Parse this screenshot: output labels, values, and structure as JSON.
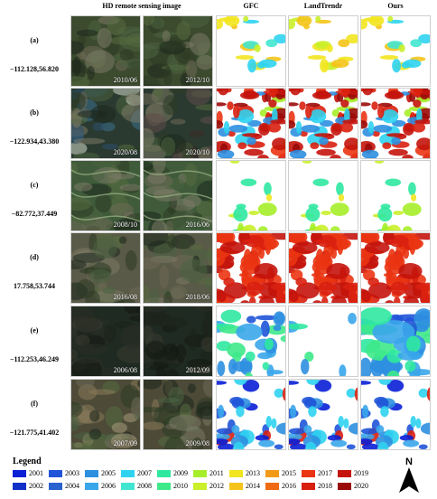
{
  "headers": {
    "hd": "HD remote sensing image",
    "gfc": "GFC",
    "landtrendr": "LandTrendr",
    "ours": "Ours"
  },
  "rows": [
    {
      "id": "(a)",
      "coord": "−112.128,56.820",
      "date1": "2010/06",
      "date2": "2012/10"
    },
    {
      "id": "(b)",
      "coord": "−122.934,43.380",
      "date1": "2020/08",
      "date2": "2020/10"
    },
    {
      "id": "(c)",
      "coord": "−82.772,37.449",
      "date1": "2008/10",
      "date2": "2016/06"
    },
    {
      "id": "(d)",
      "coord": "17.758,53.744",
      "date1": "2016/08",
      "date2": "2018/06"
    },
    {
      "id": "(e)",
      "coord": "−112.253,46.249",
      "date1": "2006/08",
      "date2": "2012/09"
    },
    {
      "id": "(f)",
      "coord": "−121.775,41.402",
      "date1": "2007/09",
      "date2": "2009/08"
    }
  ],
  "legend": {
    "title": "Legend",
    "items": [
      {
        "year": "2001",
        "color": "#0a1fd6"
      },
      {
        "year": "2002",
        "color": "#1230c8"
      },
      {
        "year": "2003",
        "color": "#1f54d8"
      },
      {
        "year": "2004",
        "color": "#2a62cf"
      },
      {
        "year": "2005",
        "color": "#2d8fe0"
      },
      {
        "year": "2006",
        "color": "#3aa6ea"
      },
      {
        "year": "2007",
        "color": "#2fd3f0"
      },
      {
        "year": "2008",
        "color": "#41e6d0"
      },
      {
        "year": "2009",
        "color": "#2fe8a0"
      },
      {
        "year": "2010",
        "color": "#3ee98a"
      },
      {
        "year": "2011",
        "color": "#a6ee2a"
      },
      {
        "year": "2012",
        "color": "#c9f02a"
      },
      {
        "year": "2013",
        "color": "#f2e51f"
      },
      {
        "year": "2014",
        "color": "#f4c41a"
      },
      {
        "year": "2015",
        "color": "#f29a18"
      },
      {
        "year": "2016",
        "color": "#f06a14"
      },
      {
        "year": "2017",
        "color": "#ea3412"
      },
      {
        "year": "2018",
        "color": "#d9200f"
      },
      {
        "year": "2019",
        "color": "#c4140c"
      },
      {
        "year": "2020",
        "color": "#9a0a08"
      }
    ]
  },
  "north_label": "N"
}
